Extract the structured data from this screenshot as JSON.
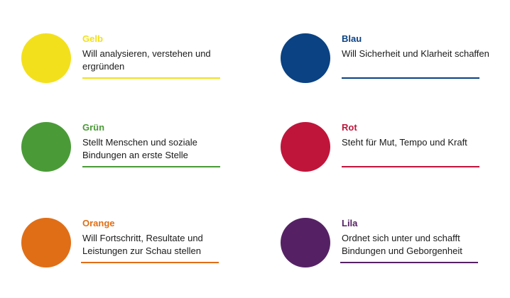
{
  "colors": {
    "gelb": "#f3e01c",
    "blau": "#0a4283",
    "gruen": "#4a9b37",
    "rot": "#c0153b",
    "orange": "#e06e17",
    "lila": "#552164"
  },
  "items": {
    "gelb": {
      "title": "Gelb",
      "desc": "Will analysieren, verstehen und ergründen"
    },
    "blau": {
      "title": "Blau",
      "desc": "Will Sicherheit und Klarheit schaffen"
    },
    "gruen": {
      "title": "Grün",
      "desc": "Stellt Menschen und soziale Bindungen an erste Stelle"
    },
    "rot": {
      "title": "Rot",
      "desc": "Steht für Mut, Tempo und Kraft"
    },
    "orange": {
      "title": "Orange",
      "desc": "Will Fortschritt, Resultate und Leistungen zur Schau stellen"
    },
    "lila": {
      "title": "Lila",
      "desc": "Ordnet sich unter und schafft Bindungen und Geborgenheit"
    }
  }
}
